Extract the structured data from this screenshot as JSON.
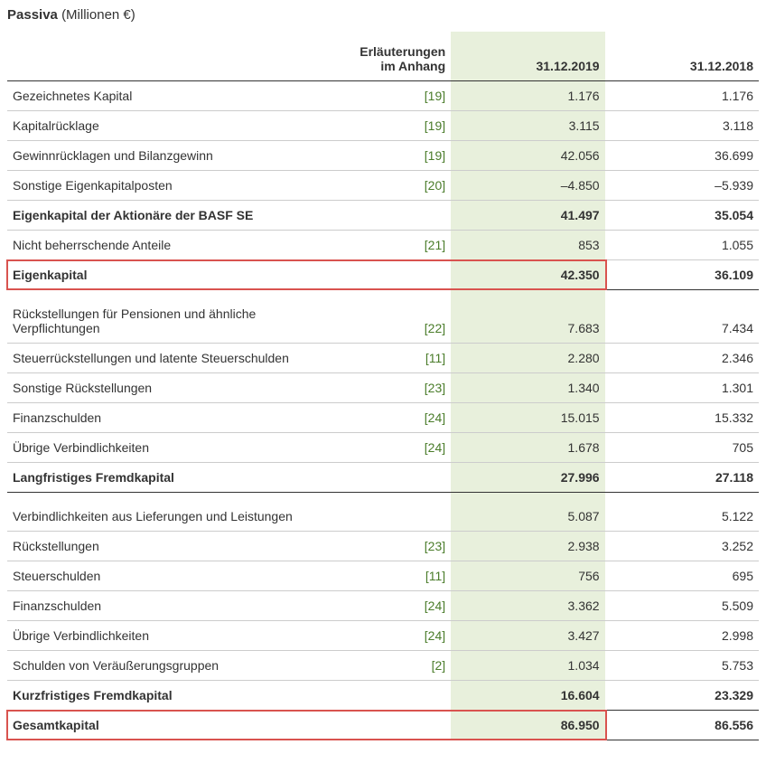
{
  "title_bold": "Passiva",
  "title_rest": "(Millionen €)",
  "header": {
    "notes_line1": "Erläuterungen",
    "notes_line2": "im Anhang",
    "col2019": "31.12.2019",
    "col2018": "31.12.2018"
  },
  "rows": [
    {
      "label": "Gezeichnetes Kapital",
      "note": "[19]",
      "v1": "1.176",
      "v2": "1.176",
      "bold": false,
      "redbox": false,
      "section_top": false
    },
    {
      "label": "Kapitalrücklage",
      "note": "[19]",
      "v1": "3.115",
      "v2": "3.118",
      "bold": false,
      "redbox": false,
      "section_top": false
    },
    {
      "label": "Gewinnrücklagen und Bilanzgewinn",
      "note": "[19]",
      "v1": "42.056",
      "v2": "36.699",
      "bold": false,
      "redbox": false,
      "section_top": false
    },
    {
      "label": "Sonstige Eigenkapitalposten",
      "note": "[20]",
      "v1": "–4.850",
      "v2": "–5.939",
      "bold": false,
      "redbox": false,
      "section_top": false
    },
    {
      "label": "Eigenkapital der Aktionäre der BASF SE",
      "note": "",
      "v1": "41.497",
      "v2": "35.054",
      "bold": true,
      "redbox": false,
      "section_top": false
    },
    {
      "label": "Nicht beherrschende Anteile",
      "note": "[21]",
      "v1": "853",
      "v2": "1.055",
      "bold": false,
      "redbox": false,
      "section_top": false
    },
    {
      "label": "Eigenkapital",
      "note": "",
      "v1": "42.350",
      "v2": "36.109",
      "bold": true,
      "redbox": true,
      "section_top": true
    },
    {
      "spacer": true
    },
    {
      "label": "Rückstellungen für Pensionen und ähnliche Verpflichtungen",
      "note": "[22]",
      "v1": "7.683",
      "v2": "7.434",
      "bold": false,
      "redbox": false,
      "section_top": false
    },
    {
      "label": "Steuerrückstellungen und latente Steuerschulden",
      "note": "[11]",
      "v1": "2.280",
      "v2": "2.346",
      "bold": false,
      "redbox": false,
      "section_top": false
    },
    {
      "label": "Sonstige Rückstellungen",
      "note": "[23]",
      "v1": "1.340",
      "v2": "1.301",
      "bold": false,
      "redbox": false,
      "section_top": false
    },
    {
      "label": "Finanzschulden",
      "note": "[24]",
      "v1": "15.015",
      "v2": "15.332",
      "bold": false,
      "redbox": false,
      "section_top": false
    },
    {
      "label": "Übrige Verbindlichkeiten",
      "note": "[24]",
      "v1": "1.678",
      "v2": "705",
      "bold": false,
      "redbox": false,
      "section_top": false
    },
    {
      "label": "Langfristiges Fremdkapital",
      "note": "",
      "v1": "27.996",
      "v2": "27.118",
      "bold": true,
      "redbox": false,
      "section_top": true
    },
    {
      "spacer": true
    },
    {
      "label": "Verbindlichkeiten aus Lieferungen und Leistungen",
      "note": "",
      "v1": "5.087",
      "v2": "5.122",
      "bold": false,
      "redbox": false,
      "section_top": false
    },
    {
      "label": "Rückstellungen",
      "note": "[23]",
      "v1": "2.938",
      "v2": "3.252",
      "bold": false,
      "redbox": false,
      "section_top": false
    },
    {
      "label": "Steuerschulden",
      "note": "[11]",
      "v1": "756",
      "v2": "695",
      "bold": false,
      "redbox": false,
      "section_top": false
    },
    {
      "label": "Finanzschulden",
      "note": "[24]",
      "v1": "3.362",
      "v2": "5.509",
      "bold": false,
      "redbox": false,
      "section_top": false
    },
    {
      "label": "Übrige Verbindlichkeiten",
      "note": "[24]",
      "v1": "3.427",
      "v2": "2.998",
      "bold": false,
      "redbox": false,
      "section_top": false
    },
    {
      "label": "Schulden von Veräußerungsgruppen",
      "note": "[2]",
      "v1": "1.034",
      "v2": "5.753",
      "bold": false,
      "redbox": false,
      "section_top": false
    },
    {
      "label": "Kurzfristiges Fremdkapital",
      "note": "",
      "v1": "16.604",
      "v2": "23.329",
      "bold": true,
      "redbox": false,
      "section_top": true
    },
    {
      "label": "Gesamtkapital",
      "note": "",
      "v1": "86.950",
      "v2": "86.556",
      "bold": true,
      "redbox": true,
      "section_top": true
    }
  ],
  "style": {
    "highlight_bg": "#e8f0dc",
    "note_color": "#4a7c2a",
    "redbox_color": "#d9534f",
    "border_color": "#333333",
    "row_border_color": "#cccccc",
    "font_size": 14
  }
}
